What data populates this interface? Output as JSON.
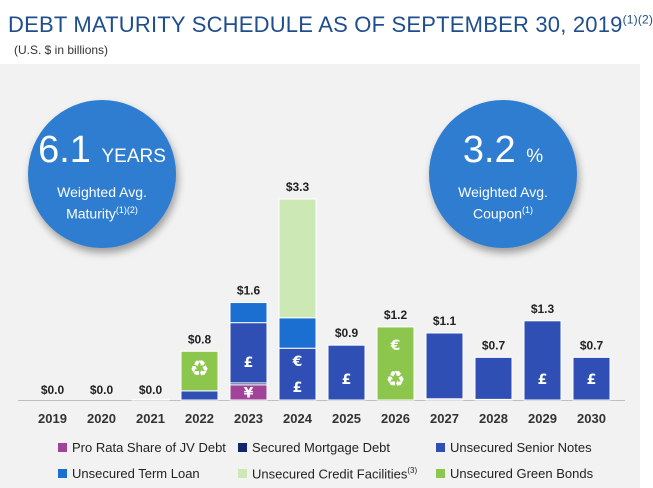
{
  "header": {
    "title": "DEBT MATURITY SCHEDULE AS OF SEPTEMBER 30, 2019",
    "title_note": "(1)(2)",
    "subtitle": "(U.S. $ in billions)"
  },
  "stats": {
    "maturity": {
      "value": "6.1",
      "unit": "YEARS",
      "line1": "Weighted Avg.",
      "line2": "Maturity",
      "note": "(1)(2)"
    },
    "coupon": {
      "value": "3.2",
      "unit": "%",
      "line1": "Weighted Avg.",
      "line2": "Coupon",
      "note": "(1)"
    }
  },
  "legend": [
    {
      "label": "Pro Rata Share of JV Debt",
      "color": "#a0449a"
    },
    {
      "label": "Secured Mortgage Debt",
      "color": "#14266b"
    },
    {
      "label": "Unsecured Senior Notes",
      "color": "#2f4fb5"
    },
    {
      "label": "Unsecured Term Loan",
      "color": "#1b6fd0"
    },
    {
      "label": "Unsecured Credit Facilities",
      "note": "(3)",
      "color": "#cce8b5"
    },
    {
      "label": "Unsecured Green Bonds",
      "color": "#8dc64c"
    }
  ],
  "chart_data": {
    "type": "bar",
    "stacked": true,
    "categories": [
      "2019",
      "2020",
      "2021",
      "2022",
      "2023",
      "2024",
      "2025",
      "2026",
      "2027",
      "2028",
      "2029",
      "2030"
    ],
    "totals": [
      0.0,
      0.0,
      0.0,
      0.8,
      1.6,
      3.3,
      0.9,
      1.2,
      1.1,
      0.7,
      1.3,
      0.7
    ],
    "total_labels": [
      "$0.0",
      "$0.0",
      "$0.0",
      "$0.8",
      "$1.6",
      "$3.3",
      "$0.9",
      "$1.2",
      "$1.1",
      "$0.7",
      "$1.3",
      "$0.7"
    ],
    "ylim": [
      0,
      3.3
    ],
    "series": [
      {
        "name": "Pro Rata Share of JV Debt",
        "color": "#a0449a",
        "values": [
          0,
          0,
          0.01,
          0,
          0.25,
          0,
          0,
          0,
          0.02,
          0.01,
          0,
          0
        ]
      },
      {
        "name": "Secured Mortgage Debt",
        "color": "#14266b",
        "values": [
          0,
          0,
          0,
          0,
          0.03,
          0,
          0,
          0,
          0,
          0,
          0,
          0
        ]
      },
      {
        "name": "Unsecured Senior Notes",
        "color": "#2f4fb5",
        "values": [
          0,
          0,
          0,
          0.15,
          0.99,
          0.85,
          0.9,
          0,
          1.08,
          0.69,
          1.3,
          0.7
        ]
      },
      {
        "name": "Unsecured Term Loan",
        "color": "#1b6fd0",
        "values": [
          0,
          0,
          0,
          0,
          0.33,
          0.5,
          0,
          0,
          0,
          0,
          0,
          0
        ]
      },
      {
        "name": "Unsecured Credit Facilities",
        "color": "#cce8b5",
        "values": [
          0,
          0,
          0,
          0,
          0,
          1.95,
          0,
          0,
          0,
          0,
          0,
          0
        ]
      },
      {
        "name": "Unsecured Green Bonds",
        "color": "#8dc64c",
        "values": [
          0,
          0,
          0,
          0.65,
          0,
          0,
          0,
          1.2,
          0,
          0,
          0,
          0
        ]
      }
    ],
    "segment_labels": [
      {
        "category": "2022",
        "series": "Unsecured Green Bonds",
        "text": "♻"
      },
      {
        "category": "2023",
        "series": "Pro Rata Share of JV Debt",
        "text": "¥"
      },
      {
        "category": "2023",
        "series": "Unsecured Senior Notes",
        "text": "£"
      },
      {
        "category": "2024",
        "series": "Unsecured Senior Notes",
        "text": "£"
      },
      {
        "category": "2024",
        "series": "Unsecured Senior Notes",
        "text": "€"
      },
      {
        "category": "2025",
        "series": "Unsecured Senior Notes",
        "text": "£"
      },
      {
        "category": "2026",
        "series": "Unsecured Green Bonds",
        "text": "♻"
      },
      {
        "category": "2026",
        "series": "Unsecured Green Bonds",
        "text": "€"
      },
      {
        "category": "2029",
        "series": "Unsecured Senior Notes",
        "text": "£"
      },
      {
        "category": "2030",
        "series": "Unsecured Senior Notes",
        "text": "£"
      }
    ]
  }
}
